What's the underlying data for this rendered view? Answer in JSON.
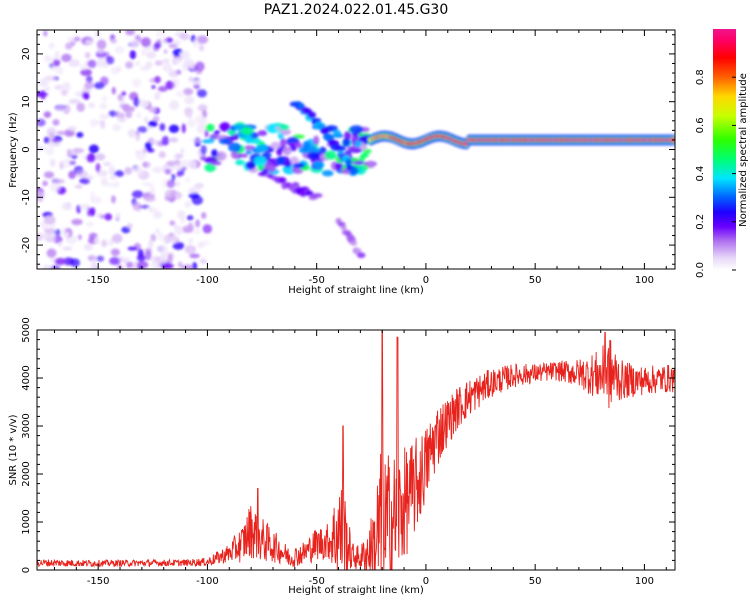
{
  "title": "PAZ1.2024.022.01.45.G30",
  "colorbar": {
    "label": "Normalized spectral amplitude",
    "ticks": [
      "0.0",
      "0.2",
      "0.4",
      "0.6",
      "0.8"
    ],
    "tick_values": [
      0.0,
      0.2,
      0.4,
      0.6,
      0.8
    ],
    "range": [
      0.0,
      1.0
    ],
    "colormap": "gist_ncar-like (white-lilac → violet → blue → cyan → green → yellow → red → magenta)",
    "colors": [
      "#ffffff",
      "#e8d8f8",
      "#b070f0",
      "#6a00ff",
      "#1d00ff",
      "#0060ff",
      "#00e5ff",
      "#00ff70",
      "#2cff00",
      "#c8ff00",
      "#ffd800",
      "#ff6000",
      "#ff0000",
      "#ff0060",
      "#f0148c"
    ]
  },
  "chart_data": [
    {
      "type": "heatmap",
      "title": "PAZ1.2024.022.01.45.G30",
      "xlabel": "Height of straight line (km)",
      "ylabel": "Frequency (Hz)",
      "xlim": [
        -178,
        114
      ],
      "ylim": [
        -25,
        25
      ],
      "xticks": [
        -150,
        -100,
        -50,
        0,
        50,
        100
      ],
      "xtick_labels": [
        "-150",
        "-100",
        "-50",
        "0",
        "50",
        "100"
      ],
      "yticks": [
        20,
        10,
        0,
        -10,
        -20
      ],
      "ytick_labels": [
        "20",
        "10",
        "0",
        "-10",
        "-20"
      ],
      "value_label": "Normalized spectral amplitude",
      "features": [
        {
          "name": "noise speckle",
          "x_range": [
            -178,
            -100
          ],
          "y_range": [
            -25,
            25
          ],
          "amplitude": [
            0.0,
            0.25
          ]
        },
        {
          "name": "transition band",
          "x_range": [
            -100,
            -25
          ],
          "y_range": [
            -5,
            5
          ],
          "amplitude": [
            0.1,
            0.55
          ]
        },
        {
          "name": "upper diagonal branch",
          "points": [
            [
              -60,
              10
            ],
            [
              -50,
              6
            ],
            [
              -40,
              0
            ],
            [
              -33,
              -5
            ]
          ],
          "amplitude": 0.35
        },
        {
          "name": "lower diagonal branch",
          "points": [
            [
              -75,
              -5
            ],
            [
              -60,
              -8
            ],
            [
              -50,
              -10
            ]
          ],
          "amplitude": 0.2
        },
        {
          "name": "deep tail",
          "points": [
            [
              -40,
              -15
            ],
            [
              -30,
              -22
            ]
          ],
          "amplitude": 0.15
        },
        {
          "name": "carrier line",
          "x_range": [
            -25,
            114
          ],
          "y": 2,
          "amplitude": [
            0.5,
            1.0
          ]
        }
      ]
    },
    {
      "type": "line",
      "xlabel": "Height of straight line (km)",
      "ylabel": "SNR (10 * v/v)",
      "xlim": [
        -178,
        114
      ],
      "ylim": [
        0,
        5000
      ],
      "xticks": [
        -150,
        -100,
        -50,
        0,
        50,
        100
      ],
      "xtick_labels": [
        "-150",
        "-100",
        "-50",
        "0",
        "50",
        "100"
      ],
      "yticks": [
        0,
        1000,
        2000,
        3000,
        4000,
        5000
      ],
      "ytick_labels": [
        "0",
        "1000",
        "2000",
        "3000",
        "4000",
        "5000"
      ],
      "color": "#e8221c",
      "envelope": {
        "x": [
          -178,
          -150,
          -110,
          -100,
          -90,
          -84,
          -80,
          -76,
          -72,
          -68,
          -62,
          -56,
          -50,
          -44,
          -40,
          -37,
          -34,
          -30,
          -27,
          -24,
          -21,
          -18,
          -12,
          -8,
          -4,
          0,
          5,
          10,
          15,
          20,
          25,
          30,
          40,
          50,
          60,
          70,
          80,
          84,
          90,
          100,
          114
        ],
        "base": [
          150,
          140,
          150,
          170,
          350,
          550,
          850,
          650,
          550,
          450,
          250,
          350,
          550,
          600,
          800,
          700,
          300,
          250,
          350,
          500,
          800,
          900,
          1200,
          1500,
          1800,
          2200,
          2800,
          3100,
          3400,
          3600,
          3750,
          3900,
          4050,
          4100,
          4150,
          4100,
          4050,
          4100,
          3950,
          3950,
          4000
        ],
        "amp": [
          80,
          70,
          70,
          90,
          200,
          400,
          600,
          500,
          400,
          300,
          200,
          250,
          350,
          400,
          1200,
          900,
          300,
          250,
          500,
          800,
          1800,
          1600,
          1300,
          1100,
          1000,
          800,
          700,
          500,
          450,
          400,
          350,
          300,
          250,
          200,
          200,
          300,
          550,
          800,
          400,
          300,
          300
        ]
      },
      "peaks": [
        {
          "x": -77,
          "y": 1700
        },
        {
          "x": -38,
          "y": 3000
        },
        {
          "x": -20,
          "y": 5000
        },
        {
          "x": -13,
          "y": 4850
        },
        {
          "x": 82,
          "y": 4950
        }
      ]
    }
  ]
}
